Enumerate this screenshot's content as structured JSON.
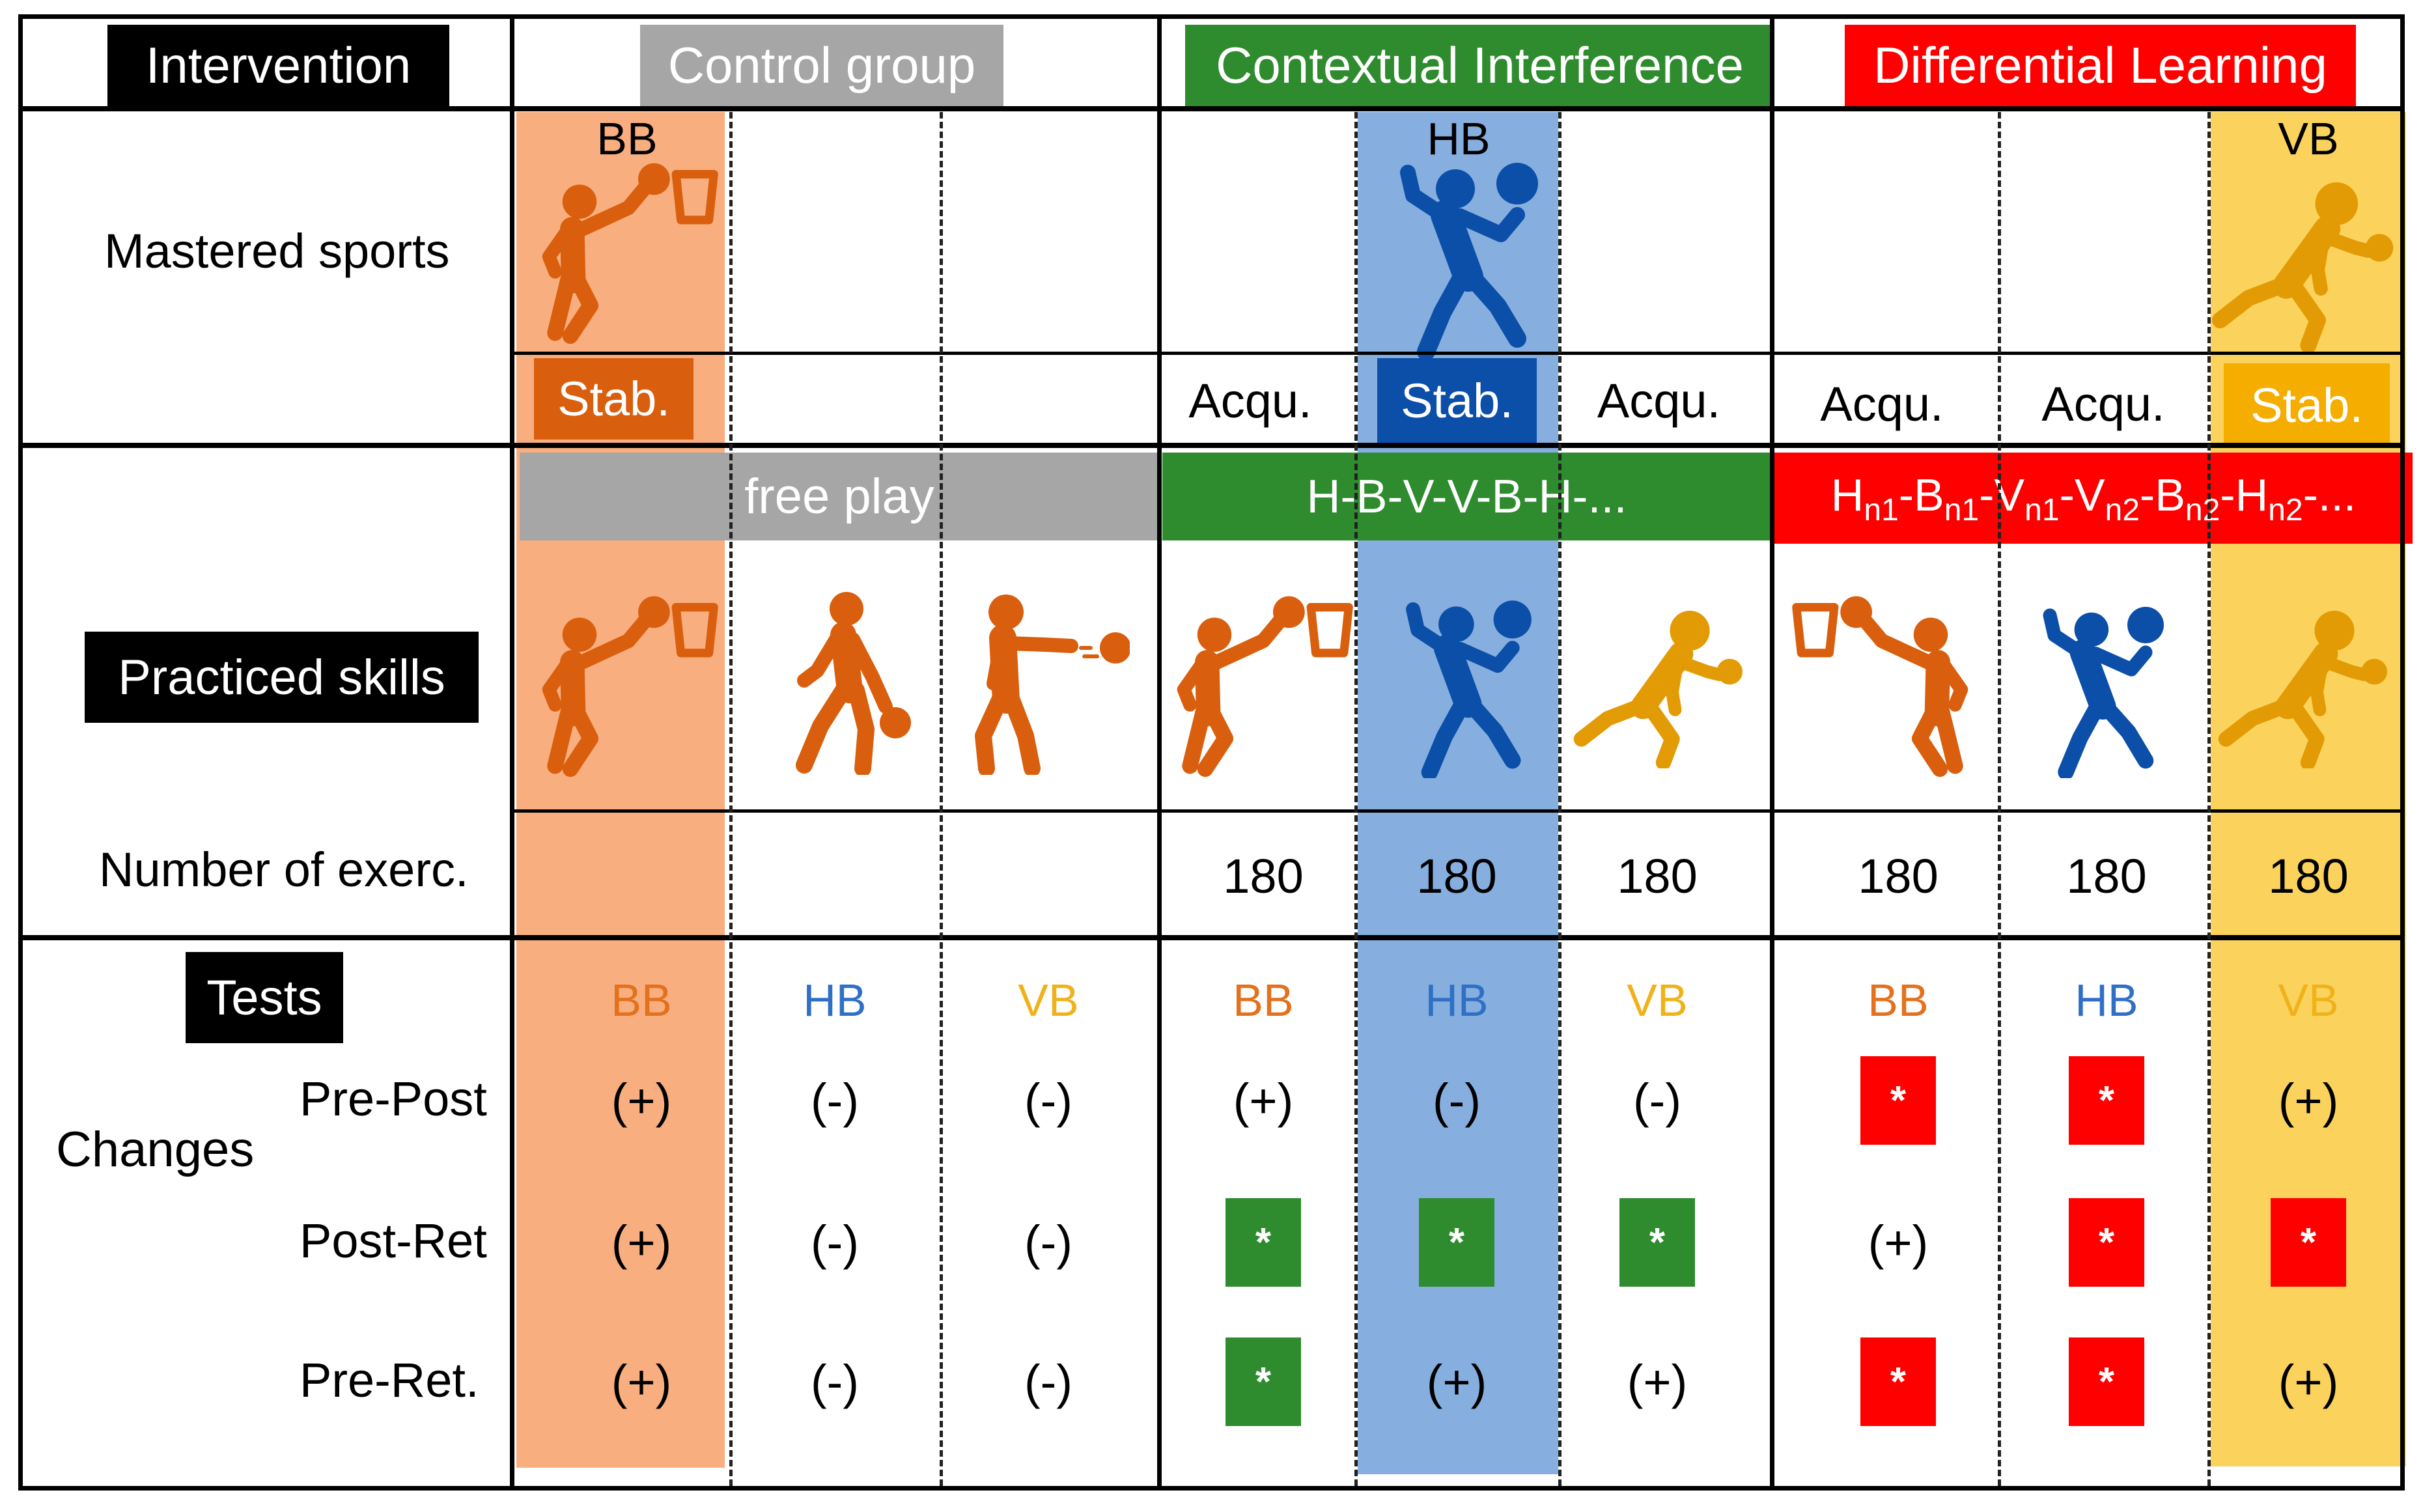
{
  "colors": {
    "bb": "#D95F0E",
    "hb": "#0B4FA8",
    "vb": "#E39B05",
    "control": "#A6A6A6",
    "ci": "#2E8B2E",
    "dl": "#FF0000",
    "bb_col": "#F8AE7E",
    "hb_col": "#86AEDF",
    "vb_col": "#FBD35C",
    "bb_text": "#E3711E",
    "hb_text": "#2F6FC6",
    "vb_text": "#F0B21A"
  },
  "header": {
    "intervention": "Intervention",
    "control": "Control group",
    "ci": "Contextual Interference",
    "dl": "Differential Learning"
  },
  "mastered": {
    "label": "Mastered sports",
    "bb": "BB",
    "hb": "HB",
    "vb": "VB",
    "cols": [
      "Stab.",
      "",
      "",
      "Acqu.",
      "Stab.",
      "Acqu.",
      "Acqu.",
      "Acqu.",
      "Stab."
    ]
  },
  "practiced": {
    "label": "Practiced skills",
    "control_schedule": "free play",
    "ci_schedule": "H-B-V-V-B-H-...",
    "dl_schedule": [
      {
        "b": "H",
        "s": "n1"
      },
      {
        "b": "-B",
        "s": "n1"
      },
      {
        "b": "-V",
        "s": "n1"
      },
      {
        "b": "-V",
        "s": "n2"
      },
      {
        "b": "-B",
        "s": "n2"
      },
      {
        "b": "-H",
        "s": "n2"
      },
      {
        "b": "-...",
        "s": ""
      }
    ],
    "icons": [
      "basketball-shot-icon",
      "basketball-dribble-icon",
      "basketball-pass-icon",
      "basketball-shot-icon",
      "handball-throw-icon",
      "volleyball-serve-icon",
      "basketball-shot-icon",
      "handball-throw-icon",
      "volleyball-serve-icon"
    ]
  },
  "exercises": {
    "label": "Number of exerc.",
    "values": [
      "",
      "",
      "",
      "180",
      "180",
      "180",
      "180",
      "180",
      "180"
    ]
  },
  "tests": {
    "label": "Tests",
    "headers": [
      "BB",
      "HB",
      "VB",
      "BB",
      "HB",
      "VB",
      "BB",
      "HB",
      "VB"
    ],
    "changes_label": "Changes",
    "rows": [
      {
        "label": "Pre-Post",
        "cells": [
          {
            "t": "(+)"
          },
          {
            "t": "(-)"
          },
          {
            "t": "(-)"
          },
          {
            "t": "(+)"
          },
          {
            "t": "(-)"
          },
          {
            "t": "(-)"
          },
          {
            "t": "*",
            "sig": "dl"
          },
          {
            "t": "*",
            "sig": "dl"
          },
          {
            "t": "(+)"
          }
        ]
      },
      {
        "label": "Post-Ret",
        "cells": [
          {
            "t": "(+)"
          },
          {
            "t": "(-)"
          },
          {
            "t": "(-)"
          },
          {
            "t": "*",
            "sig": "ci"
          },
          {
            "t": "*",
            "sig": "ci"
          },
          {
            "t": "*",
            "sig": "ci"
          },
          {
            "t": "(+)"
          },
          {
            "t": "*",
            "sig": "dl"
          },
          {
            "t": "*",
            "sig": "dl"
          }
        ]
      },
      {
        "label": "Pre-Ret.",
        "cells": [
          {
            "t": "(+)"
          },
          {
            "t": "(-)"
          },
          {
            "t": "(-)"
          },
          {
            "t": "*",
            "sig": "ci"
          },
          {
            "t": "(+)"
          },
          {
            "t": "(+)"
          },
          {
            "t": "*",
            "sig": "dl"
          },
          {
            "t": "*",
            "sig": "dl"
          },
          {
            "t": "(+)"
          }
        ]
      }
    ]
  }
}
